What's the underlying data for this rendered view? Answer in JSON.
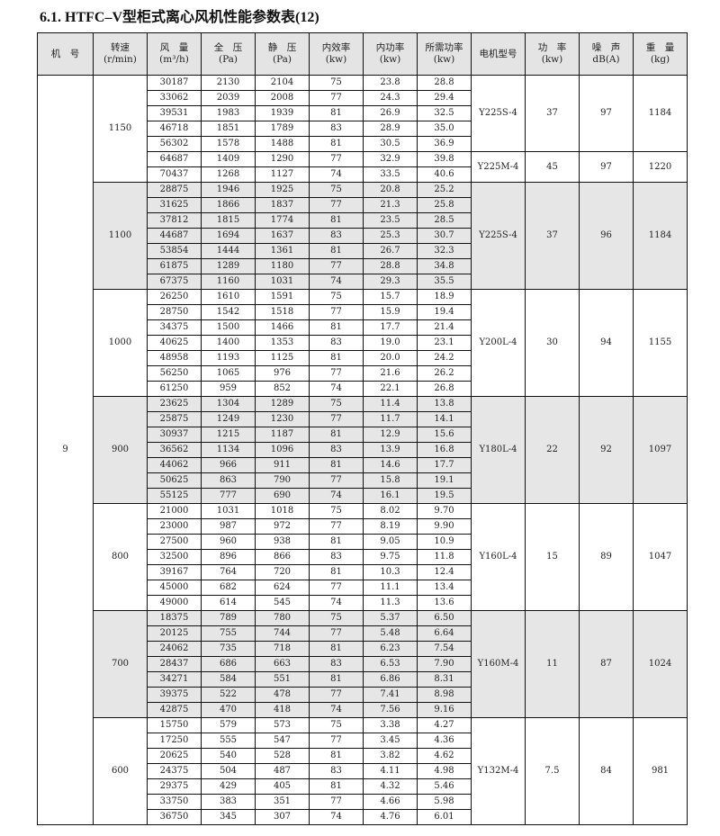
{
  "title": "6.1. HTFC–V型柜式离心风机性能参数表(12)",
  "headers": [
    [
      "机　号",
      ""
    ],
    [
      "转速",
      "(r/min)"
    ],
    [
      "风　量",
      "(m³/h)"
    ],
    [
      "全　压",
      "(Pa)"
    ],
    [
      "静　压",
      "(Pa)"
    ],
    [
      "内效率",
      "(kw)"
    ],
    [
      "内功率",
      "(kw)"
    ],
    [
      "所需功率",
      "(kw)"
    ],
    [
      "电机型号",
      ""
    ],
    [
      "功　率",
      "(kw)"
    ],
    [
      "噪　声",
      "dB(A)"
    ],
    [
      "重　量",
      "(kg)"
    ]
  ],
  "machine_no": "9",
  "groups": [
    {
      "speed": "1150",
      "shaded": false,
      "rows": [
        [
          "30187",
          "2130",
          "2104",
          "75",
          "23.8",
          "28.8"
        ],
        [
          "33062",
          "2039",
          "2008",
          "77",
          "24.3",
          "29.4"
        ],
        [
          "39531",
          "1983",
          "1939",
          "81",
          "26.9",
          "32.5"
        ],
        [
          "46718",
          "1851",
          "1789",
          "83",
          "28.9",
          "35.0"
        ],
        [
          "56302",
          "1578",
          "1488",
          "81",
          "30.5",
          "36.9"
        ],
        [
          "64687",
          "1409",
          "1290",
          "77",
          "32.9",
          "39.8"
        ],
        [
          "70437",
          "1268",
          "1127",
          "74",
          "33.5",
          "40.6"
        ]
      ],
      "motors": [
        {
          "span": 5,
          "model": "Y225S-4",
          "power": "37",
          "noise": "97",
          "weight": "1184"
        },
        {
          "span": 2,
          "model": "Y225M-4",
          "power": "45",
          "noise": "97",
          "weight": "1220"
        }
      ]
    },
    {
      "speed": "1100",
      "shaded": true,
      "rows": [
        [
          "28875",
          "1946",
          "1925",
          "75",
          "20.8",
          "25.2"
        ],
        [
          "31625",
          "1866",
          "1837",
          "77",
          "21.3",
          "25.8"
        ],
        [
          "37812",
          "1815",
          "1774",
          "81",
          "23.5",
          "28.5"
        ],
        [
          "44687",
          "1694",
          "1637",
          "83",
          "25.3",
          "30.7"
        ],
        [
          "53854",
          "1444",
          "1361",
          "81",
          "26.7",
          "32.3"
        ],
        [
          "61875",
          "1289",
          "1180",
          "77",
          "28.8",
          "34.8"
        ],
        [
          "67375",
          "1160",
          "1031",
          "74",
          "29.3",
          "35.5"
        ]
      ],
      "motors": [
        {
          "span": 7,
          "model": "Y225S-4",
          "power": "37",
          "noise": "96",
          "weight": "1184"
        }
      ]
    },
    {
      "speed": "1000",
      "shaded": false,
      "rows": [
        [
          "26250",
          "1610",
          "1591",
          "75",
          "15.7",
          "18.9"
        ],
        [
          "28750",
          "1542",
          "1518",
          "77",
          "15.9",
          "19.4"
        ],
        [
          "34375",
          "1500",
          "1466",
          "81",
          "17.7",
          "21.4"
        ],
        [
          "40625",
          "1400",
          "1353",
          "83",
          "19.0",
          "23.1"
        ],
        [
          "48958",
          "1193",
          "1125",
          "81",
          "20.0",
          "24.2"
        ],
        [
          "56250",
          "1065",
          "976",
          "77",
          "21.6",
          "26.2"
        ],
        [
          "61250",
          "959",
          "852",
          "74",
          "22.1",
          "26.8"
        ]
      ],
      "motors": [
        {
          "span": 7,
          "model": "Y200L-4",
          "power": "30",
          "noise": "94",
          "weight": "1155"
        }
      ]
    },
    {
      "speed": "900",
      "shaded": true,
      "rows": [
        [
          "23625",
          "1304",
          "1289",
          "75",
          "11.4",
          "13.8"
        ],
        [
          "25875",
          "1249",
          "1230",
          "77",
          "11.7",
          "14.1"
        ],
        [
          "30937",
          "1215",
          "1187",
          "81",
          "12.9",
          "15.6"
        ],
        [
          "36562",
          "1134",
          "1096",
          "83",
          "13.9",
          "16.8"
        ],
        [
          "44062",
          "966",
          "911",
          "81",
          "14.6",
          "17.7"
        ],
        [
          "50625",
          "863",
          "790",
          "77",
          "15.8",
          "19.1"
        ],
        [
          "55125",
          "777",
          "690",
          "74",
          "16.1",
          "19.5"
        ]
      ],
      "motors": [
        {
          "span": 7,
          "model": "Y180L-4",
          "power": "22",
          "noise": "92",
          "weight": "1097"
        }
      ]
    },
    {
      "speed": "800",
      "shaded": false,
      "rows": [
        [
          "21000",
          "1031",
          "1018",
          "75",
          "8.02",
          "9.70"
        ],
        [
          "23000",
          "987",
          "972",
          "77",
          "8.19",
          "9.90"
        ],
        [
          "27500",
          "960",
          "938",
          "81",
          "9.05",
          "10.9"
        ],
        [
          "32500",
          "896",
          "866",
          "83",
          "9.75",
          "11.8"
        ],
        [
          "39167",
          "764",
          "720",
          "81",
          "10.3",
          "12.4"
        ],
        [
          "45000",
          "682",
          "624",
          "77",
          "11.1",
          "13.4"
        ],
        [
          "49000",
          "614",
          "545",
          "74",
          "11.3",
          "13.6"
        ]
      ],
      "motors": [
        {
          "span": 7,
          "model": "Y160L-4",
          "power": "15",
          "noise": "89",
          "weight": "1047"
        }
      ]
    },
    {
      "speed": "700",
      "shaded": true,
      "rows": [
        [
          "18375",
          "789",
          "780",
          "75",
          "5.37",
          "6.50"
        ],
        [
          "20125",
          "755",
          "744",
          "77",
          "5.48",
          "6.64"
        ],
        [
          "24062",
          "735",
          "718",
          "81",
          "6.23",
          "7.54"
        ],
        [
          "28437",
          "686",
          "663",
          "83",
          "6.53",
          "7.90"
        ],
        [
          "34271",
          "584",
          "551",
          "81",
          "6.86",
          "8.31"
        ],
        [
          "39375",
          "522",
          "478",
          "77",
          "7.41",
          "8.98"
        ],
        [
          "42875",
          "470",
          "418",
          "74",
          "7.56",
          "9.16"
        ]
      ],
      "motors": [
        {
          "span": 7,
          "model": "Y160M-4",
          "power": "11",
          "noise": "87",
          "weight": "1024"
        }
      ]
    },
    {
      "speed": "600",
      "shaded": false,
      "rows": [
        [
          "15750",
          "579",
          "573",
          "75",
          "3.38",
          "4.27"
        ],
        [
          "17250",
          "555",
          "547",
          "77",
          "3.45",
          "4.36"
        ],
        [
          "20625",
          "540",
          "528",
          "81",
          "3.82",
          "4.62"
        ],
        [
          "24375",
          "504",
          "487",
          "83",
          "4.11",
          "4.98"
        ],
        [
          "29375",
          "429",
          "405",
          "81",
          "4.32",
          "5.46"
        ],
        [
          "33750",
          "383",
          "351",
          "77",
          "4.66",
          "5.98"
        ],
        [
          "36750",
          "345",
          "307",
          "74",
          "4.76",
          "6.01"
        ]
      ],
      "motors": [
        {
          "span": 7,
          "model": "Y132M-4",
          "power": "7.5",
          "noise": "84",
          "weight": "981"
        }
      ]
    }
  ]
}
